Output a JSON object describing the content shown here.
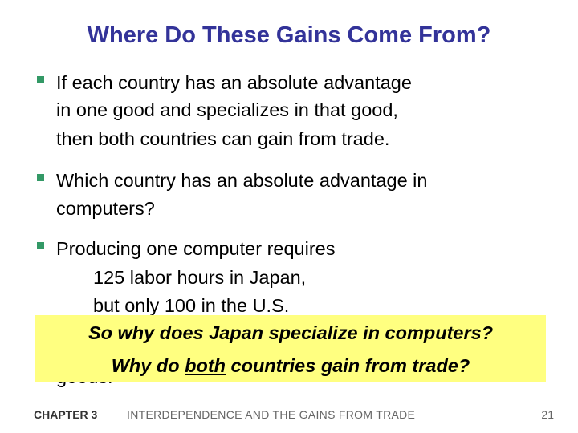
{
  "slide": {
    "title": "Where Do These Gains Come From?",
    "bullet1": [
      "If each country has an absolute advantage",
      "in one good and specializes in that good,",
      "then both countries can gain from trade."
    ],
    "bullet2": [
      "Which country has an absolute advantage in",
      "computers?"
    ],
    "bullet3": [
      "Producing one computer requires",
      "125 labor hours in Japan,",
      "but only 100 in the U.S.",
      "goods."
    ],
    "callout": {
      "line1": "So why does Japan specialize in computers?",
      "line2_prefix": "Why do ",
      "line2_emphasis": "both",
      "line2_suffix": " countries gain from trade?"
    }
  },
  "footer": {
    "chapter": "CHAPTER 3",
    "title": "INTERDEPENDENCE AND THE GAINS FROM TRADE",
    "page": "21"
  },
  "colors": {
    "title": "#333399",
    "bullet": "#339966",
    "callout_bg": "#ffff80"
  }
}
